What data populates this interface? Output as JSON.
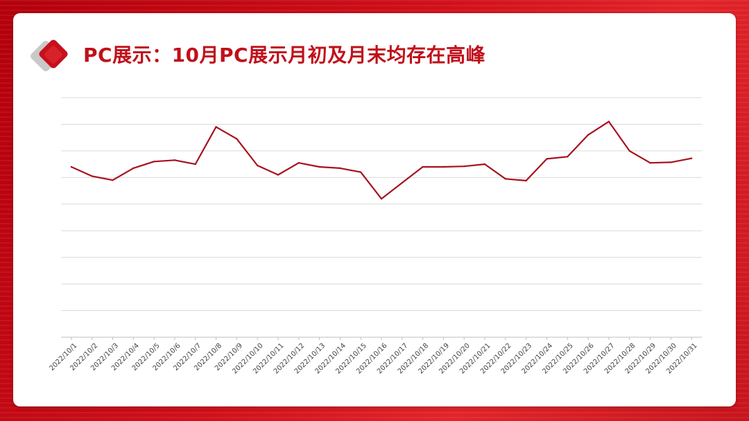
{
  "slide": {
    "title": "PC展示：10月PC展示月初及月末均存在高峰",
    "colors": {
      "background": "#c8141c",
      "title": "#c0101a",
      "line": "#a8101e",
      "grid": "#d9d9d9"
    }
  },
  "chart_data": {
    "type": "line",
    "categories": [
      "2022/10/1",
      "2022/10/2",
      "2022/10/3",
      "2022/10/4",
      "2022/10/5",
      "2022/10/6",
      "2022/10/7",
      "2022/10/8",
      "2022/10/9",
      "2022/10/10",
      "2022/10/11",
      "2022/10/12",
      "2022/10/13",
      "2022/10/14",
      "2022/10/15",
      "2022/10/16",
      "2022/10/17",
      "2022/10/18",
      "2022/10/19",
      "2022/10/20",
      "2022/10/21",
      "2022/10/22",
      "2022/10/23",
      "2022/10/24",
      "2022/10/25",
      "2022/10/26",
      "2022/10/27",
      "2022/10/28",
      "2022/10/29",
      "2022/10/30",
      "2022/10/31"
    ],
    "series": [
      {
        "values": [
          6.4,
          6.05,
          5.9,
          6.35,
          6.6,
          6.65,
          6.5,
          7.9,
          7.45,
          6.45,
          6.1,
          6.55,
          6.4,
          6.35,
          6.2,
          5.2,
          5.8,
          6.4,
          6.4,
          6.42,
          6.5,
          5.95,
          5.88,
          6.7,
          6.78,
          7.6,
          8.1,
          7.0,
          6.55,
          6.57,
          6.72
        ]
      }
    ],
    "ylim": [
      0,
      9
    ],
    "y_gridlines": 9,
    "grid": true,
    "y_tick_labels_shown": false,
    "legend": "none"
  }
}
